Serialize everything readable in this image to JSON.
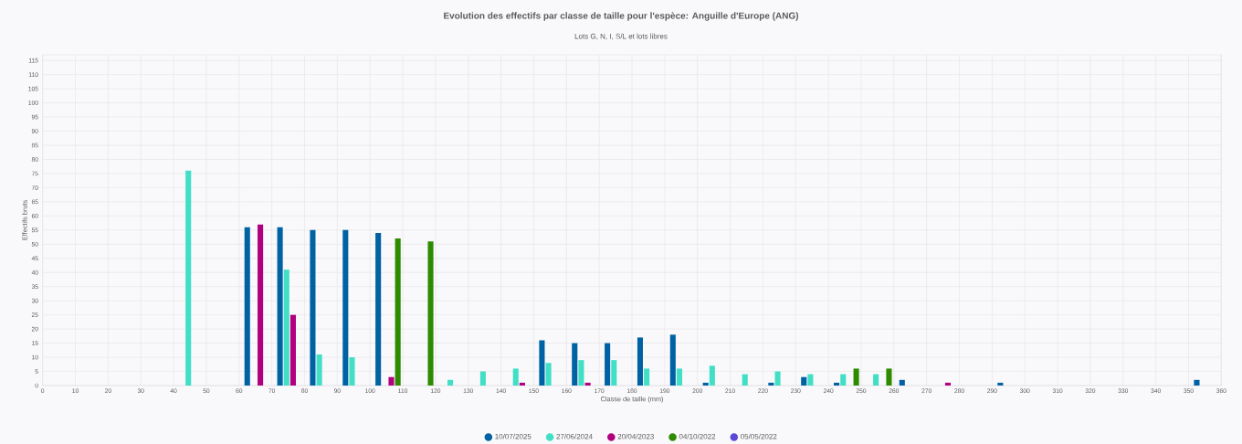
{
  "chart_data": {
    "type": "bar",
    "title": "Evolution des effectifs par classe de taille pour l'espèce: Anguille d'Europe (ANG)",
    "subtitle": "Lots G, N, I, S/L et lots libres",
    "xlabel": "Classe de taille (mm)",
    "ylabel": "Effectifs bruts",
    "x": [
      45,
      55,
      65,
      75,
      85,
      95,
      105,
      115,
      125,
      135,
      145,
      155,
      165,
      175,
      185,
      195,
      205,
      215,
      225,
      235,
      245,
      255,
      265,
      275,
      285,
      295,
      305,
      315,
      325,
      335,
      345,
      355
    ],
    "series": [
      {
        "name": "10/07/2025",
        "color": "#0062a3",
        "values": [
          null,
          null,
          56,
          56,
          55,
          55,
          54,
          null,
          null,
          null,
          null,
          16,
          15,
          15,
          17,
          18,
          1,
          null,
          1,
          3,
          1,
          null,
          2,
          null,
          null,
          1,
          null,
          null,
          null,
          null,
          null,
          2
        ]
      },
      {
        "name": "27/06/2024",
        "color": "#40dfc6",
        "values": [
          76,
          null,
          null,
          41,
          11,
          10,
          null,
          null,
          2,
          5,
          6,
          8,
          9,
          9,
          6,
          6,
          7,
          4,
          5,
          4,
          4,
          4,
          null,
          null,
          null,
          null,
          null,
          null,
          null,
          null,
          null,
          null
        ]
      },
      {
        "name": "20/04/2023",
        "color": "#b0007f",
        "values": [
          null,
          null,
          57,
          25,
          null,
          null,
          3,
          null,
          null,
          null,
          1,
          null,
          1,
          null,
          null,
          null,
          null,
          null,
          null,
          null,
          null,
          null,
          null,
          1,
          null,
          null,
          null,
          null,
          null,
          null,
          null,
          null
        ]
      },
      {
        "name": "04/10/2022",
        "color": "#2e8b00",
        "values": [
          null,
          null,
          null,
          null,
          null,
          null,
          52,
          51,
          null,
          null,
          null,
          null,
          null,
          null,
          null,
          null,
          null,
          null,
          null,
          null,
          6,
          6,
          null,
          null,
          null,
          null,
          null,
          null,
          null,
          null,
          null,
          null
        ]
      },
      {
        "name": "05/05/2022",
        "color": "#5b48d6",
        "values": [
          null,
          null,
          null,
          null,
          null,
          null,
          null,
          null,
          null,
          null,
          null,
          null,
          null,
          null,
          null,
          null,
          null,
          null,
          null,
          null,
          null,
          null,
          null,
          null,
          null,
          null,
          null,
          null,
          null,
          null,
          null,
          null
        ]
      }
    ],
    "xlim": [
      0,
      360
    ],
    "xticks": [
      0,
      10,
      20,
      30,
      40,
      50,
      60,
      70,
      80,
      90,
      100,
      110,
      120,
      130,
      140,
      150,
      160,
      170,
      180,
      190,
      200,
      210,
      220,
      230,
      240,
      250,
      260,
      270,
      280,
      290,
      300,
      310,
      320,
      330,
      340,
      350,
      360
    ],
    "ylim": [
      0,
      117
    ],
    "yticks": [
      0,
      5,
      10,
      15,
      20,
      25,
      30,
      35,
      40,
      45,
      50,
      55,
      60,
      65,
      70,
      75,
      80,
      85,
      90,
      95,
      100,
      105,
      110,
      115
    ],
    "grid": true,
    "legend": "bottom"
  }
}
